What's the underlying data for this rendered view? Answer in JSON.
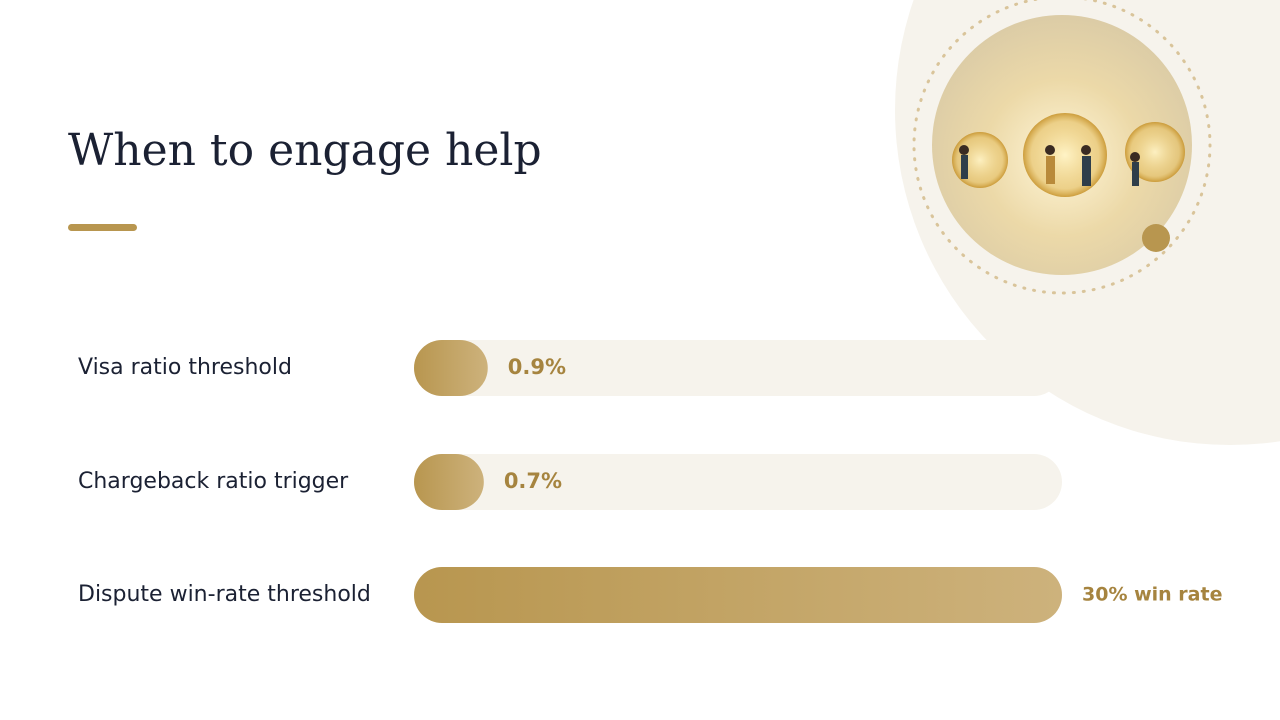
{
  "chart_data": {
    "type": "bar",
    "orientation": "horizontal",
    "title": "When to engage help",
    "categories": [
      "Visa ratio threshold",
      "Chargeback ratio trigger",
      "Dispute win-rate threshold"
    ],
    "values": [
      0.9,
      0.7,
      30
    ],
    "value_labels": [
      "0.9%",
      "0.7%",
      "30% win rate"
    ],
    "color": "#b8964f"
  }
}
